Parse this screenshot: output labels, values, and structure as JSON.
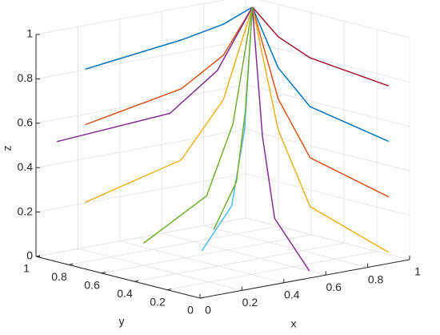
{
  "chart_data": {
    "type": "line3d",
    "xlabel": "x",
    "ylabel": "y",
    "zlabel": "z",
    "xlim": [
      0,
      1
    ],
    "ylim": [
      0,
      1
    ],
    "zlim": [
      0,
      1
    ],
    "xticks": [
      0,
      0.2,
      0.4,
      0.6,
      0.8,
      1
    ],
    "yticks": [
      0,
      0.2,
      0.4,
      0.6,
      0.8,
      1
    ],
    "zticks": [
      0,
      0.2,
      0.4,
      0.6,
      0.8,
      1
    ],
    "grid": true,
    "series": [
      {
        "color": "#0072bd",
        "x": [
          0,
          0.56,
          0.8,
          0.97
        ],
        "y": [
          0.7,
          0.83,
          0.88,
          0.92
        ],
        "z": [
          0.9,
          0.91,
          0.93,
          0.97
        ]
      },
      {
        "color": "#d95319",
        "x": [
          0,
          0.56,
          0.8,
          0.97
        ],
        "y": [
          0.7,
          0.83,
          0.88,
          0.92
        ],
        "z": [
          0.65,
          0.69,
          0.79,
          0.97
        ]
      },
      {
        "color": "#edb120",
        "x": [
          0,
          0.56,
          0.8,
          0.97
        ],
        "y": [
          0.7,
          0.83,
          0.88,
          0.92
        ],
        "z": [
          0.3,
          0.37,
          0.59,
          0.97
        ]
      },
      {
        "color": "#7e2f8e",
        "x": [
          0.1,
          0.6,
          0.81,
          0.97
        ],
        "y": [
          1,
          0.95,
          0.93,
          0.92
        ],
        "z": [
          0.5,
          0.55,
          0.71,
          0.97
        ]
      },
      {
        "color": "#77ac30",
        "x": [
          0.2,
          0.65,
          0.83,
          0.97
        ],
        "y": [
          0.6,
          0.79,
          0.86,
          0.92
        ],
        "z": [
          0.1,
          0.2,
          0.48,
          0.97
        ]
      },
      {
        "color": "#4dbeee",
        "x": [
          0.4,
          0.73,
          0.87,
          0.97
        ],
        "y": [
          0.5,
          0.74,
          0.84,
          0.92
        ],
        "z": [
          0.05,
          0.15,
          0.45,
          0.97
        ]
      },
      {
        "color": "#a2142f",
        "x": [
          0.9,
          0.94,
          0.96,
          0.97
        ],
        "y": [
          0,
          0.53,
          0.75,
          0.92
        ],
        "z": [
          0.8,
          0.82,
          0.87,
          0.97
        ]
      },
      {
        "color": "#0072bd",
        "x": [
          0.9,
          0.94,
          0.96,
          0.97
        ],
        "y": [
          0,
          0.53,
          0.75,
          0.92
        ],
        "z": [
          0.55,
          0.6,
          0.73,
          0.97
        ]
      },
      {
        "color": "#d95319",
        "x": [
          0.9,
          0.94,
          0.96,
          0.97
        ],
        "y": [
          0,
          0.53,
          0.75,
          0.92
        ],
        "z": [
          0.3,
          0.37,
          0.59,
          0.97
        ]
      },
      {
        "color": "#edb120",
        "x": [
          0.9,
          0.94,
          0.96,
          0.97
        ],
        "y": [
          0,
          0.53,
          0.75,
          0.92
        ],
        "z": [
          0.05,
          0.15,
          0.45,
          0.97
        ]
      },
      {
        "color": "#7e2f8e",
        "x": [
          0.6,
          0.81,
          0.9,
          0.97
        ],
        "y": [
          0.1,
          0.58,
          0.77,
          0.92
        ],
        "z": [
          0,
          0.11,
          0.43,
          0.97
        ]
      },
      {
        "color": "#77ac30",
        "x": [
          0.3,
          0.69,
          0.85,
          0.97
        ],
        "y": [
          0.3,
          0.66,
          0.81,
          0.92
        ],
        "z": [
          0.2,
          0.28,
          0.54,
          0.97
        ]
      }
    ]
  }
}
